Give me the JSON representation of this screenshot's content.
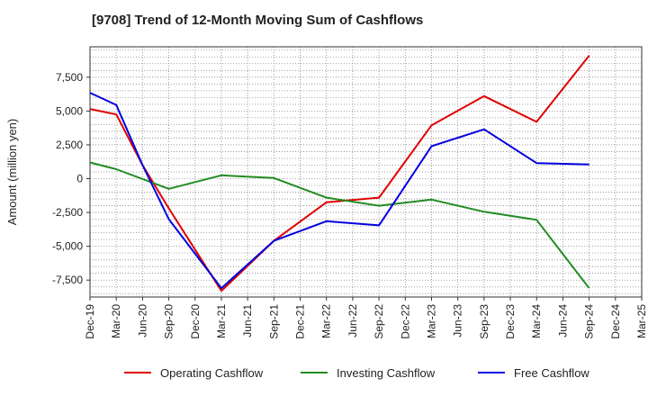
{
  "chart_data": {
    "type": "line",
    "title": "[9708]  Trend of 12-Month Moving Sum of Cashflows",
    "ylabel": "Amount (million yen)",
    "xlabel": "",
    "categories": [
      "Dec-19",
      "Mar-20",
      "Jun-20",
      "Sep-20",
      "Dec-20",
      "Mar-21",
      "Jun-21",
      "Sep-21",
      "Dec-21",
      "Mar-22",
      "Jun-22",
      "Sep-22",
      "Dec-22",
      "Mar-23",
      "Jun-23",
      "Sep-23",
      "Dec-23",
      "Mar-24",
      "Jun-24",
      "Sep-24",
      "Dec-24",
      "Mar-25"
    ],
    "ylim": [
      -8750,
      9750
    ],
    "yticks": [
      -7500,
      -5000,
      -2500,
      0,
      2500,
      5000,
      7500
    ],
    "ytick_labels": [
      "-7,500",
      "-5,000",
      "-2,500",
      "0",
      "2,500",
      "5,000",
      "7,500"
    ],
    "grid": true,
    "legend_position": "bottom",
    "series": [
      {
        "name": "Operating Cashflow",
        "color": "#e00000",
        "values": [
          5150,
          4750,
          1000,
          -2200,
          null,
          -8300,
          null,
          -4600,
          null,
          -1750,
          null,
          -1400,
          null,
          3950,
          null,
          6100,
          null,
          4200,
          null,
          9100,
          null,
          null
        ]
      },
      {
        "name": "Investing Cashflow",
        "color": "#228b22",
        "values": [
          1200,
          700,
          null,
          -750,
          null,
          250,
          null,
          50,
          null,
          -1400,
          null,
          -2000,
          null,
          -1550,
          null,
          -2450,
          null,
          -3050,
          null,
          -8100,
          null,
          null
        ]
      },
      {
        "name": "Free Cashflow",
        "color": "#0000dd",
        "values": [
          6350,
          5450,
          1000,
          -3000,
          null,
          -8100,
          null,
          -4600,
          null,
          -3150,
          null,
          -3450,
          null,
          2400,
          null,
          3650,
          null,
          1150,
          null,
          1050,
          null,
          null
        ]
      }
    ]
  }
}
